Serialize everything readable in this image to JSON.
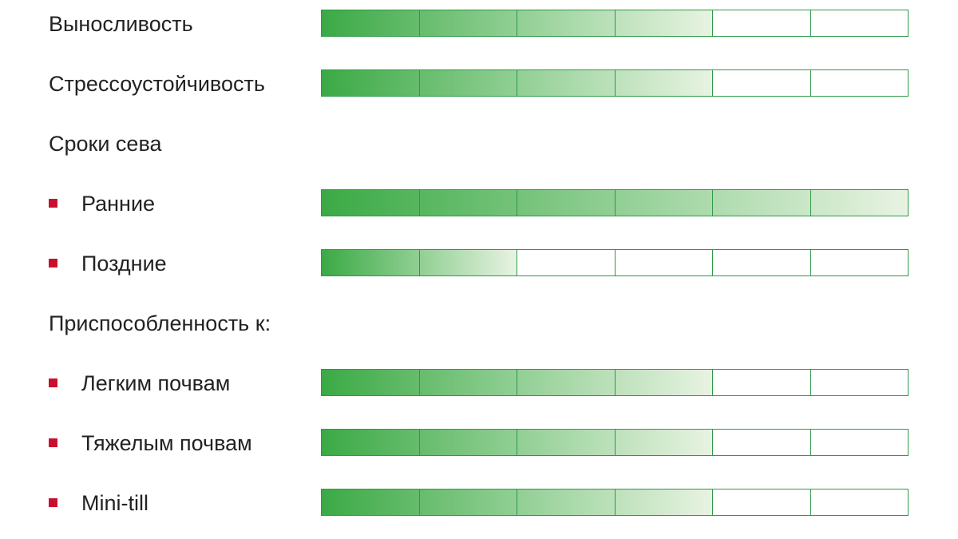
{
  "scale": {
    "segments": 6,
    "bar_color": "#3aaa45",
    "fade_color": "#e8f3e2",
    "border_color": "#2e9a48",
    "bullet_color": "#c8102e"
  },
  "rows": [
    {
      "label": "Выносливость",
      "type": "rating",
      "rating": 4
    },
    {
      "label": "Стрессоустойчивость",
      "type": "rating",
      "rating": 4
    },
    {
      "label": "Сроки сева",
      "type": "heading"
    },
    {
      "label": "Ранние",
      "type": "rating",
      "bullet": true,
      "rating": 6
    },
    {
      "label": "Поздние",
      "type": "rating",
      "bullet": true,
      "rating": 2
    },
    {
      "label": "Приспособленность к:",
      "type": "heading"
    },
    {
      "label": "Легким почвам",
      "type": "rating",
      "bullet": true,
      "rating": 4
    },
    {
      "label": "Тяжелым почвам",
      "type": "rating",
      "bullet": true,
      "rating": 4
    },
    {
      "label": "Mini-till",
      "type": "rating",
      "bullet": true,
      "rating": 4
    }
  ]
}
